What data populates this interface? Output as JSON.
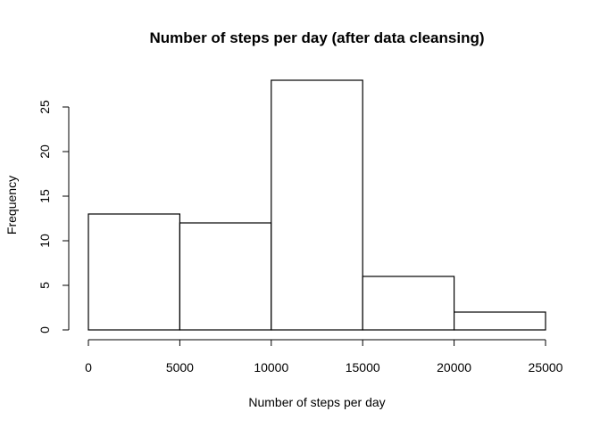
{
  "chart_data": {
    "type": "bar",
    "title": "Number of steps per day (after data cleansing)",
    "xlabel": "Number of steps per day",
    "ylabel": "Frequency",
    "bins": [
      [
        0,
        5000
      ],
      [
        5000,
        10000
      ],
      [
        10000,
        15000
      ],
      [
        15000,
        20000
      ],
      [
        20000,
        25000
      ]
    ],
    "values": [
      13,
      12,
      28,
      6,
      2
    ],
    "x_ticks": [
      "0",
      "5000",
      "10000",
      "15000",
      "20000",
      "25000"
    ],
    "y_ticks": [
      "0",
      "5",
      "10",
      "15",
      "20",
      "25"
    ],
    "xlim": [
      0,
      25000
    ],
    "ylim": [
      0,
      28
    ],
    "grid": false
  }
}
